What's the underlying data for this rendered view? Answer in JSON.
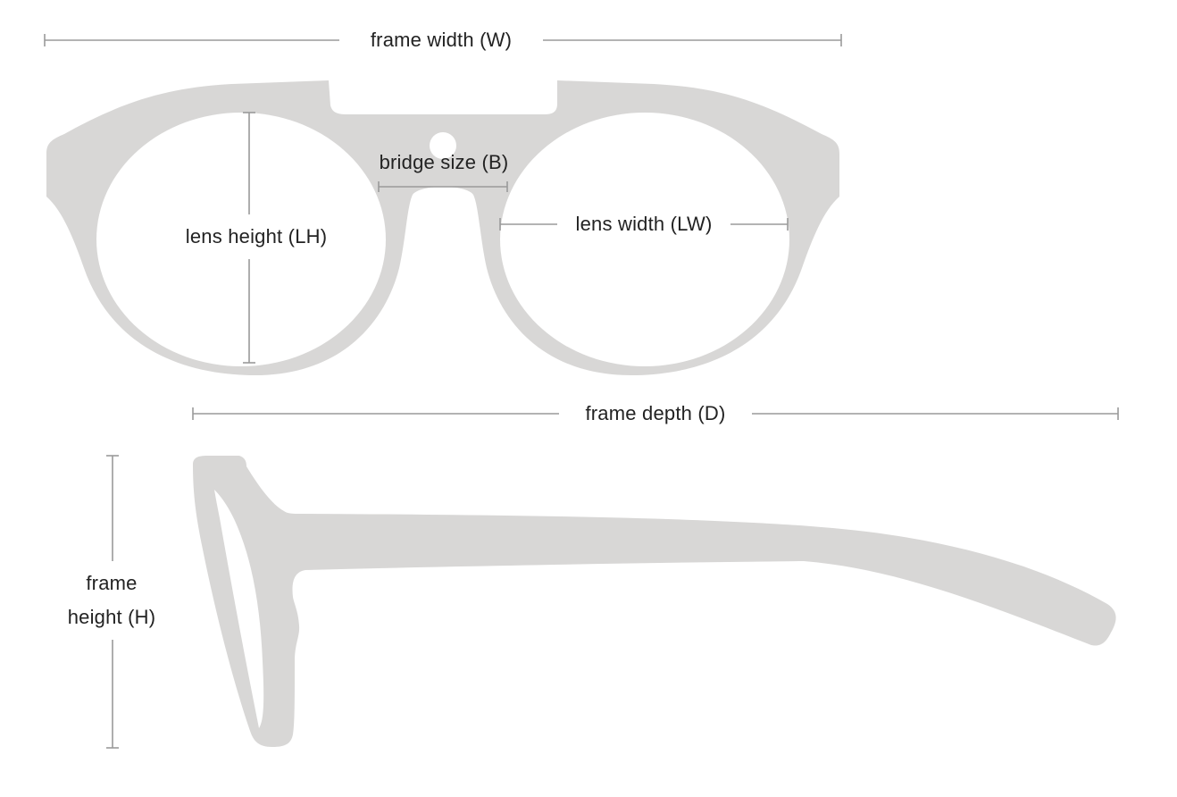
{
  "labels": {
    "frame_width": "frame width (W)",
    "bridge_size": "bridge size (B)",
    "lens_height": "lens height (LH)",
    "lens_width": "lens width (LW)",
    "frame_depth": "frame depth (D)",
    "frame_height_line1": "frame",
    "frame_height_line2": "height (H)"
  },
  "colors": {
    "frame_fill": "#d8d7d6",
    "dimension_line": "#9a9a9a",
    "label_text": "#222222",
    "background": "#ffffff"
  }
}
